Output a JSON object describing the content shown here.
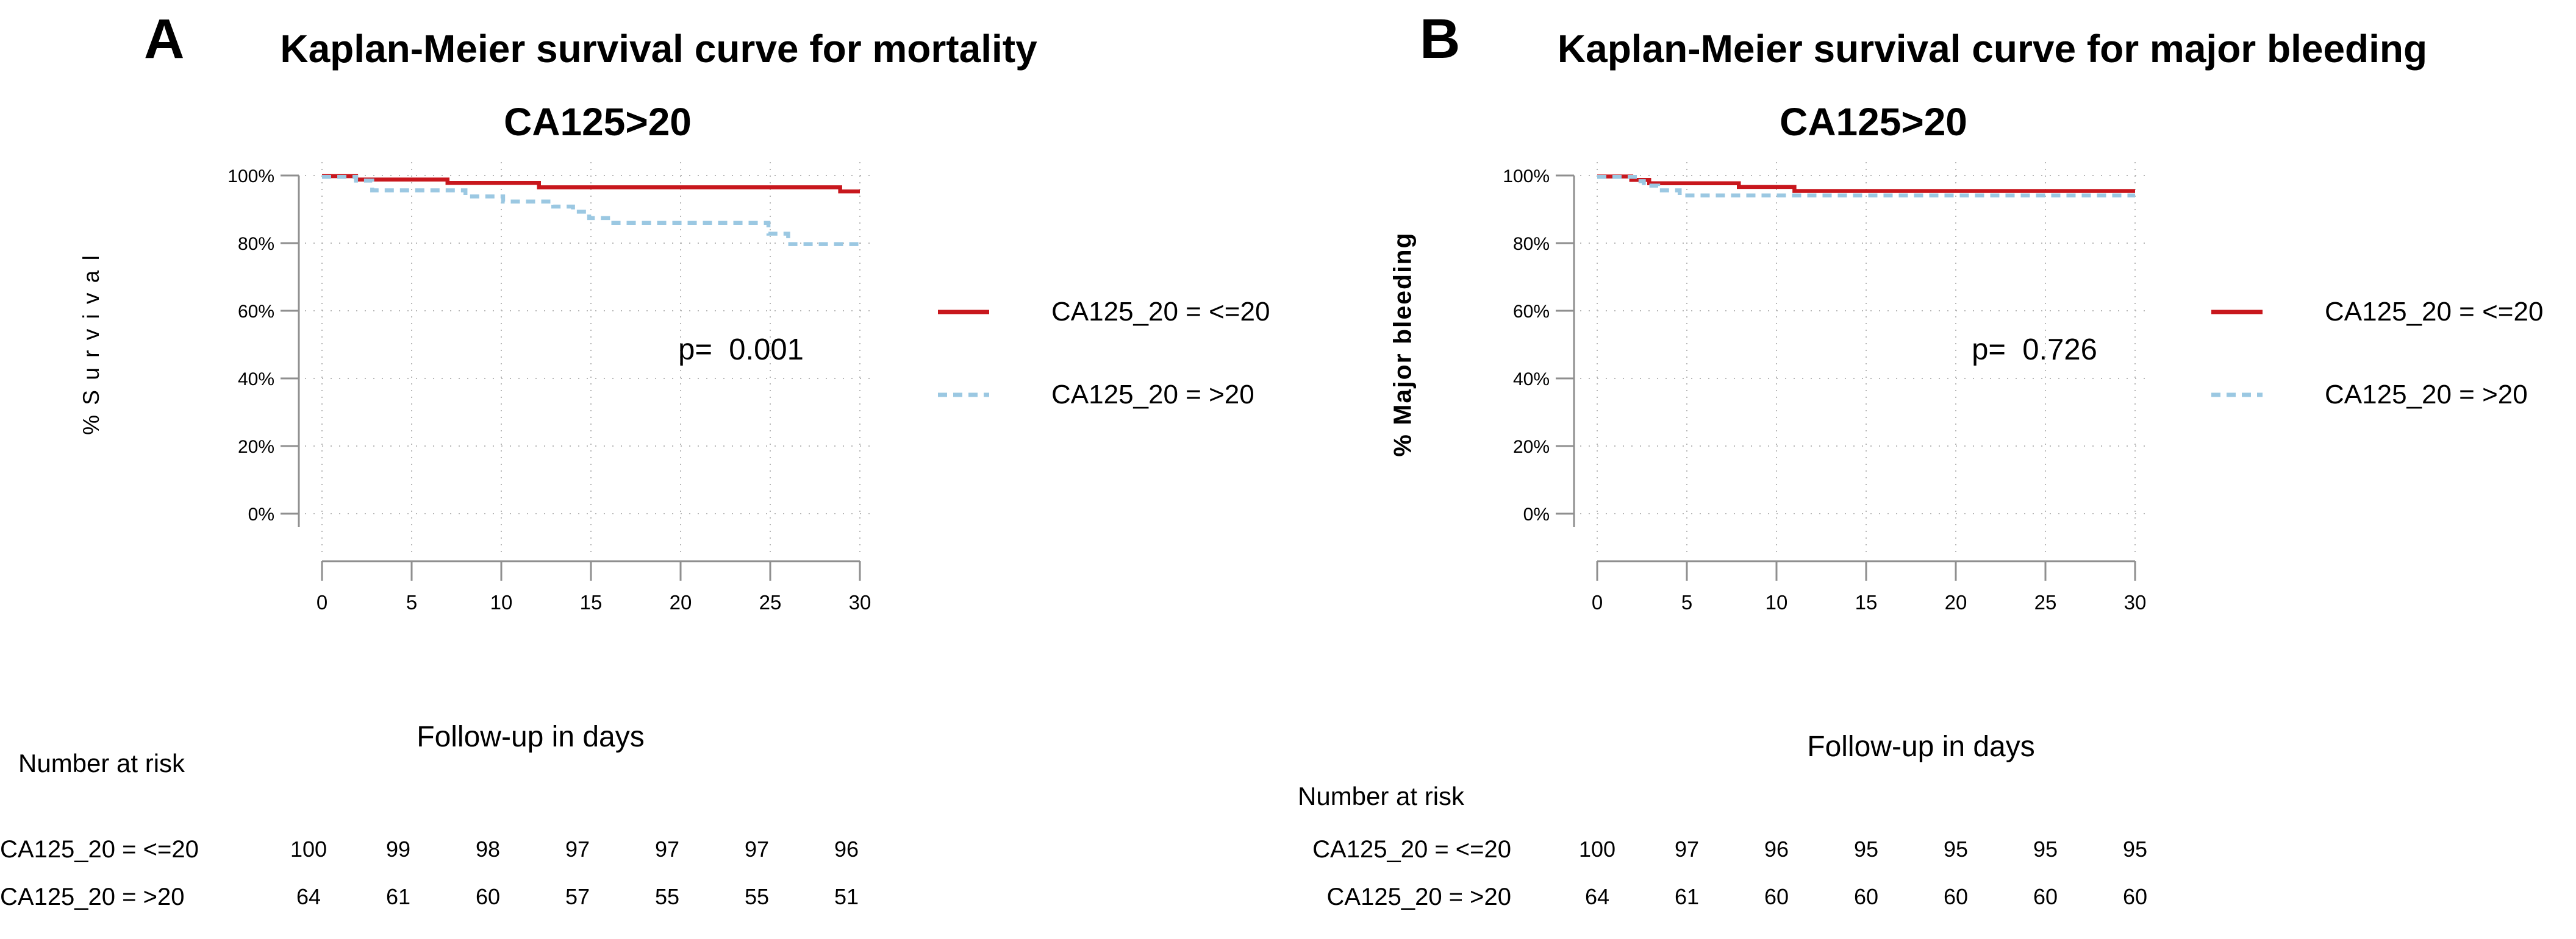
{
  "figure_background": "#ffffff",
  "colors": {
    "series_red": "#c8171d",
    "series_blue": "#9bc8e2",
    "axis_gray": "#8f8f8f",
    "grid_gray": "#b6b6b6",
    "text_black": "#000000"
  },
  "chart_data": [
    {
      "type": "line",
      "panel_label": "A",
      "title": "Kaplan-Meier survival curve for mortality",
      "subtitle": "CA125>20",
      "ylabel": "% S u r v i v a l",
      "xlabel": "Follow-up in days",
      "p_value": "p=  0.001",
      "xlim": [
        0,
        30
      ],
      "ylim": [
        0,
        100
      ],
      "grid": true,
      "legend_position": "right",
      "xticks": [
        0,
        5,
        10,
        15,
        20,
        25,
        30
      ],
      "ytick_labels": [
        "100%",
        "80%",
        "60%",
        "40%",
        "20%",
        "0%"
      ],
      "legend": [
        {
          "label": "CA125_20 = <=20",
          "color": "#c8171d",
          "dash": "solid"
        },
        {
          "label": "CA125_20 = >20",
          "color": "#9bc8e2",
          "dash": "dashed"
        }
      ],
      "series": [
        {
          "name": "CA125_20 = <=20",
          "color": "#c8171d",
          "dash": "solid",
          "steps": [
            [
              0,
              1.9,
              99.8
            ],
            [
              1.9,
              7,
              98.8
            ],
            [
              7,
              12.1,
              97.8
            ],
            [
              12.1,
              28.9,
              96.5
            ],
            [
              28.9,
              30,
              95.3
            ]
          ]
        },
        {
          "name": "CA125_20 = >20",
          "color": "#9bc8e2",
          "dash": "dashed",
          "steps": [
            [
              0,
              1.9,
              99.6
            ],
            [
              1.9,
              2.8,
              98.5
            ],
            [
              2.8,
              8,
              95.6
            ],
            [
              8,
              10.1,
              93.8
            ],
            [
              10.1,
              12.9,
              92.3
            ],
            [
              12.9,
              14,
              90.8
            ],
            [
              14,
              14.9,
              89.3
            ],
            [
              14.9,
              16.1,
              87.4
            ],
            [
              16.1,
              24.9,
              86
            ],
            [
              24.9,
              26,
              82.8
            ],
            [
              26,
              30,
              79.7
            ]
          ]
        }
      ],
      "risk_table": {
        "header": "Number at risk",
        "rows": [
          {
            "label": "CA125_20 = <=20",
            "values": [
              "100",
              "99",
              "98",
              "97",
              "97",
              "97",
              "96"
            ]
          },
          {
            "label": "CA125_20 = >20",
            "values": [
              "64",
              "61",
              "60",
              "57",
              "55",
              "55",
              "51"
            ]
          }
        ]
      }
    },
    {
      "type": "line",
      "panel_label": "B",
      "title": "Kaplan-Meier survival curve for major bleeding",
      "subtitle": "CA125>20",
      "ylabel": "% Major bleeding",
      "xlabel": "Follow-up in days",
      "p_value": "p=  0.726",
      "xlim": [
        0,
        30
      ],
      "ylim": [
        0,
        100
      ],
      "grid": true,
      "legend_position": "right",
      "xticks": [
        0,
        5,
        10,
        15,
        20,
        25,
        30
      ],
      "ytick_labels": [
        "100%",
        "80%",
        "60%",
        "40%",
        "20%",
        "0%"
      ],
      "legend": [
        {
          "label": "CA125_20 = <=20",
          "color": "#c8171d",
          "dash": "solid"
        },
        {
          "label": "CA125_20 = >20",
          "color": "#9bc8e2",
          "dash": "dashed"
        }
      ],
      "series": [
        {
          "name": "CA125_20 = <=20",
          "color": "#c8171d",
          "dash": "solid",
          "steps": [
            [
              0,
              1.9,
              99.7
            ],
            [
              1.9,
              2.9,
              98.7
            ],
            [
              2.9,
              7.9,
              97.7
            ],
            [
              7.9,
              11,
              96.6
            ],
            [
              11,
              30,
              95.4
            ]
          ]
        },
        {
          "name": "CA125_20 = >20",
          "color": "#9bc8e2",
          "dash": "dashed",
          "steps": [
            [
              0,
              2.1,
              99.6
            ],
            [
              2.1,
              2.6,
              98.3
            ],
            [
              2.6,
              3.4,
              97
            ],
            [
              3.4,
              4.6,
              95.6
            ],
            [
              4.6,
              30,
              94.1
            ]
          ]
        }
      ],
      "risk_table": {
        "header": "Number at risk",
        "rows": [
          {
            "label": "CA125_20 = <=20",
            "values": [
              "100",
              "97",
              "96",
              "95",
              "95",
              "95",
              "95"
            ]
          },
          {
            "label": "CA125_20 = >20",
            "values": [
              "64",
              "61",
              "60",
              "60",
              "60",
              "60",
              "60"
            ]
          }
        ]
      }
    }
  ]
}
